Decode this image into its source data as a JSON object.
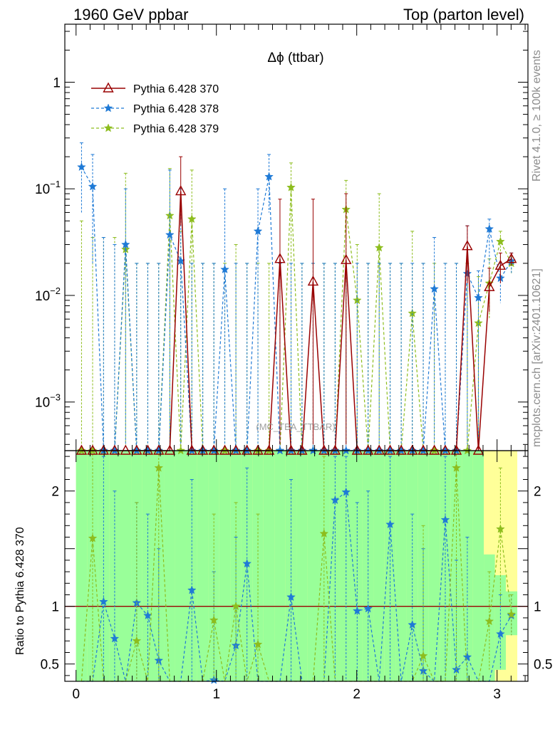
{
  "header": {
    "left": "1960 GeV ppbar",
    "right": "Top (parton level)"
  },
  "side_labels": {
    "rivet": "Rivet 4.1.0, ≥ 100k events",
    "mcplots": "mcplots.cern.ch [arXiv:2401.10621]"
  },
  "chart_data": {
    "type": "line",
    "title": "Δϕ (ttbar)",
    "watermark": "(MC_TBA_TTBAR)",
    "xlabel": "",
    "ylabel": "",
    "ratio_ylabel": "Ratio to Pythia 6.428 370",
    "xlim": [
      -0.08,
      3.22
    ],
    "ylim_main": [
      0.00035,
      3.5
    ],
    "ylim_ratio": [
      0.35,
      2.35
    ],
    "yscale_main": "log",
    "legend_position": "top-left",
    "main_y_ticks": [
      {
        "v": 1,
        "base": "1",
        "exp": ""
      },
      {
        "v": 0.1,
        "base": "10",
        "exp": "−1"
      },
      {
        "v": 0.01,
        "base": "10",
        "exp": "−2"
      },
      {
        "v": 0.001,
        "base": "10",
        "exp": "−3"
      }
    ],
    "ratio_y_ticks": [
      {
        "v": 2,
        "label": "2"
      },
      {
        "v": 1,
        "label": "1"
      },
      {
        "v": 0.5,
        "label": "0.5"
      }
    ],
    "x_ticks": [
      {
        "v": 0,
        "label": "0"
      },
      {
        "v": 1,
        "label": "1"
      },
      {
        "v": 2,
        "label": "2"
      },
      {
        "v": 3,
        "label": "3"
      }
    ],
    "colors": {
      "s370": "#990000",
      "s378": "#1f7ad6",
      "s379": "#8dbd1e",
      "band_outer": "#ffff99",
      "band_inner": "#99ff99"
    },
    "x": [
      0.039,
      0.118,
      0.196,
      0.275,
      0.353,
      0.432,
      0.511,
      0.589,
      0.668,
      0.746,
      0.825,
      0.903,
      0.982,
      1.06,
      1.139,
      1.218,
      1.296,
      1.375,
      1.453,
      1.532,
      1.61,
      1.689,
      1.767,
      1.846,
      1.924,
      2.003,
      2.081,
      2.16,
      2.238,
      2.317,
      2.396,
      2.474,
      2.553,
      2.631,
      2.71,
      2.788,
      2.867,
      2.945,
      3.024,
      3.102
    ],
    "series": [
      {
        "name": "Pythia 6.428 370",
        "key": "s370",
        "marker": "triangle",
        "dashed": false,
        "values": [
          0,
          0,
          0,
          0,
          0,
          0,
          0,
          0,
          0,
          0.095,
          0,
          0,
          0,
          0,
          0,
          0,
          0,
          0,
          0.022,
          0,
          0,
          0.0135,
          0,
          0,
          0.0215,
          0,
          0,
          0,
          0,
          0,
          0,
          0,
          0,
          0,
          0,
          0.029,
          0,
          0.012,
          0.019,
          0.022
        ],
        "err_hi": [
          0,
          0,
          0,
          0,
          0,
          0,
          0,
          0,
          0,
          0.2,
          0,
          0,
          0,
          0,
          0,
          0,
          0,
          0,
          0.08,
          0,
          0,
          0.08,
          0,
          0,
          0.09,
          0,
          0,
          0,
          0,
          0,
          0,
          0,
          0,
          0,
          0,
          0.045,
          0,
          0.018,
          0.025,
          0.025
        ],
        "err_lo": [
          0,
          0,
          0,
          0,
          0,
          0,
          0,
          0,
          0,
          0.045,
          0,
          0,
          0,
          0,
          0,
          0,
          0,
          0,
          0.0004,
          0,
          0,
          0.0004,
          0,
          0,
          0.0004,
          0,
          0,
          0,
          0,
          0,
          0,
          0,
          0,
          0,
          0,
          0.013,
          0,
          0.007,
          0.013,
          0.019
        ]
      },
      {
        "name": "Pythia 6.428 378",
        "key": "s378",
        "marker": "star",
        "dashed": true,
        "values": [
          0.16,
          0.105,
          0,
          0,
          0.03,
          0,
          0,
          0,
          0.037,
          0.021,
          0,
          0,
          0,
          0.0175,
          0,
          0,
          0.04,
          0.13,
          0,
          0,
          0,
          0,
          0,
          0,
          0,
          0,
          0,
          0,
          0,
          0,
          0,
          0,
          0.0115,
          0,
          0,
          0.016,
          0.0095,
          0.042,
          0.0145,
          0.021
        ],
        "err_hi": [
          0.27,
          0.21,
          0.035,
          0.03,
          0.1,
          0.02,
          0.02,
          0.02,
          0.15,
          0.1,
          0.02,
          0.02,
          0.02,
          0.1,
          0.02,
          0.02,
          0.1,
          0.21,
          0.02,
          0.02,
          0.02,
          0.02,
          0.02,
          0.02,
          0.02,
          0.02,
          0.02,
          0.02,
          0.02,
          0.02,
          0.02,
          0.02,
          0.035,
          0.02,
          0.02,
          0.045,
          0.017,
          0.052,
          0.02,
          0.025
        ],
        "err_lo": [
          0.06,
          0.02,
          0,
          0,
          0.0004,
          0,
          0,
          0,
          0.0004,
          0.0004,
          0,
          0,
          0,
          0.0004,
          0,
          0,
          0.0004,
          0.06,
          0,
          0,
          0,
          0,
          0,
          0,
          0,
          0,
          0,
          0,
          0,
          0,
          0,
          0,
          0.0004,
          0,
          0,
          0.0004,
          0.0004,
          0.02,
          0.0085,
          0.016
        ]
      },
      {
        "name": "Pythia 6.428 379",
        "key": "s379",
        "marker": "star",
        "dashed": true,
        "values": [
          0,
          0,
          0,
          0,
          0.027,
          0,
          0,
          0,
          0.056,
          0,
          0.052,
          0,
          0,
          0,
          0,
          0,
          0,
          0,
          0,
          0.103,
          0,
          0,
          0,
          0,
          0.064,
          0.009,
          0,
          0.028,
          0,
          0,
          0.0068,
          0,
          0,
          0,
          0,
          0,
          0.0055,
          0.013,
          0.032,
          0.02
        ],
        "err_hi": [
          0.05,
          0.035,
          0.035,
          0.035,
          0.14,
          0.02,
          0.02,
          0.02,
          0.155,
          0.04,
          0.15,
          0.02,
          0.02,
          0.02,
          0.03,
          0.02,
          0.02,
          0.02,
          0.02,
          0.175,
          0.02,
          0.02,
          0.02,
          0.02,
          0.12,
          0.03,
          0.02,
          0.09,
          0.02,
          0.02,
          0.04,
          0.02,
          0.02,
          0.02,
          0.02,
          0.02,
          0.015,
          0.022,
          0.04,
          0.023
        ],
        "err_lo": [
          0,
          0,
          0,
          0,
          0.0004,
          0,
          0,
          0,
          0.0004,
          0,
          0.0004,
          0,
          0,
          0,
          0,
          0,
          0,
          0,
          0,
          0.0004,
          0,
          0,
          0,
          0,
          0.0004,
          0.0004,
          0,
          0.0004,
          0,
          0,
          0.0004,
          0,
          0,
          0,
          0,
          0,
          0.0004,
          0.006,
          0.015,
          0.016
        ]
      }
    ],
    "ratio_series": [
      {
        "key": "s378",
        "values": [
          0,
          0,
          1.04,
          0.72,
          0,
          1.03,
          0.92,
          0.53,
          0,
          0,
          1.14,
          0,
          0.36,
          0,
          0.66,
          1.37,
          0,
          0,
          0,
          1.08,
          0,
          0,
          0,
          1.92,
          1.99,
          0.96,
          0.98,
          0,
          1.71,
          0,
          0.84,
          0.44,
          0,
          1.75,
          0.45,
          0.56,
          0,
          0,
          0.76,
          0.92
        ],
        "err_hi": [
          0,
          0,
          2.3,
          2.0,
          0,
          1.9,
          1.8,
          1.5,
          0,
          0,
          2.1,
          0,
          1.3,
          0,
          1.6,
          2.2,
          0,
          0,
          0,
          2.1,
          0,
          0,
          0,
          2.3,
          2.3,
          1.9,
          2.0,
          0,
          2.3,
          0,
          1.8,
          1.5,
          0,
          2.3,
          1.4,
          1.6,
          0,
          0,
          1.1,
          1.1
        ],
        "err_lo": [
          0,
          0,
          0.35,
          0.35,
          0,
          0.35,
          0.35,
          0.35,
          0,
          0,
          0.35,
          0,
          0.35,
          0,
          0.35,
          0.35,
          0,
          0,
          0,
          0.35,
          0,
          0,
          0,
          0.35,
          0.35,
          0.35,
          0.35,
          0,
          0.35,
          0,
          0.35,
          0.35,
          0,
          0.35,
          0.35,
          0.35,
          0,
          0,
          0.45,
          0.75
        ]
      },
      {
        "key": "s379",
        "values": [
          0,
          1.59,
          0,
          0,
          0,
          0.7,
          0,
          2.2,
          0,
          0,
          0,
          0,
          0.88,
          0,
          1.0,
          0,
          0.67,
          0,
          0,
          0,
          0,
          0,
          1.63,
          0,
          0,
          0,
          0,
          0,
          0,
          0,
          0,
          0.57,
          0,
          0,
          2.2,
          0,
          0,
          0.87,
          1.67,
          0.93
        ],
        "err_hi": [
          0,
          2.35,
          0,
          0,
          0,
          1.9,
          0,
          2.35,
          0,
          0,
          0,
          0,
          1.8,
          0,
          1.9,
          0,
          1.8,
          0,
          0,
          0,
          0,
          0,
          2.3,
          0,
          0,
          0,
          0,
          0,
          0,
          0,
          0,
          1.7,
          0,
          0,
          2.35,
          0,
          0,
          1.3,
          2.2,
          1.1
        ],
        "err_lo": [
          0,
          0.35,
          0,
          0,
          0,
          0.35,
          0,
          0.35,
          0,
          0,
          0,
          0,
          0.35,
          0,
          0.35,
          0,
          0.35,
          0,
          0,
          0,
          0,
          0,
          0.35,
          0,
          0,
          0,
          0,
          0,
          0,
          0,
          0,
          0.35,
          0,
          0,
          0.35,
          0,
          0,
          0.45,
          1.0,
          0.75
        ]
      }
    ],
    "band_outer": {
      "lo": [
        0.35,
        0.35,
        0.35,
        0.35,
        0.35,
        0.35,
        0.35,
        0.35,
        0.35,
        0.35,
        0.35,
        0.35,
        0.35,
        0.35,
        0.35,
        0.35,
        0.35,
        0.35,
        0.35,
        0.35,
        0.35,
        0.35,
        0.35,
        0.35,
        0.35,
        0.35,
        0.35,
        0.35,
        0.35,
        0.35,
        0.35,
        0.35,
        0.35,
        0.35,
        0.35,
        0.35,
        0.35,
        0.35,
        0.35,
        0.35
      ],
      "hi": [
        2.35,
        2.35,
        2.35,
        2.35,
        2.35,
        2.35,
        2.35,
        2.35,
        2.35,
        2.35,
        2.35,
        2.35,
        2.35,
        2.35,
        2.35,
        2.35,
        2.35,
        2.35,
        2.35,
        2.35,
        2.35,
        2.35,
        2.35,
        2.35,
        2.35,
        2.35,
        2.35,
        2.35,
        2.35,
        2.35,
        2.35,
        2.35,
        2.35,
        2.35,
        2.35,
        2.35,
        2.35,
        2.35,
        2.35,
        2.35
      ]
    },
    "band_inner": {
      "lo": [
        0.35,
        0.35,
        0.35,
        0.35,
        0.35,
        0.35,
        0.35,
        0.35,
        0.35,
        0.35,
        0.35,
        0.35,
        0.35,
        0.35,
        0.35,
        0.35,
        0.35,
        0.35,
        0.35,
        0.35,
        0.35,
        0.35,
        0.35,
        0.35,
        0.35,
        0.35,
        0.35,
        0.35,
        0.35,
        0.35,
        0.35,
        0.35,
        0.35,
        0.35,
        0.35,
        0.35,
        0.35,
        0.35,
        0.45,
        0.75
      ],
      "hi": [
        2.35,
        2.35,
        2.35,
        2.35,
        2.35,
        2.35,
        2.35,
        2.35,
        2.35,
        2.35,
        2.35,
        2.35,
        2.35,
        2.35,
        2.35,
        2.35,
        2.35,
        2.35,
        2.35,
        2.35,
        2.35,
        2.35,
        2.35,
        2.35,
        2.35,
        2.35,
        2.35,
        2.35,
        2.35,
        2.35,
        2.35,
        2.35,
        2.35,
        2.35,
        2.35,
        2.35,
        2.35,
        1.45,
        1.27,
        1.13
      ]
    }
  }
}
